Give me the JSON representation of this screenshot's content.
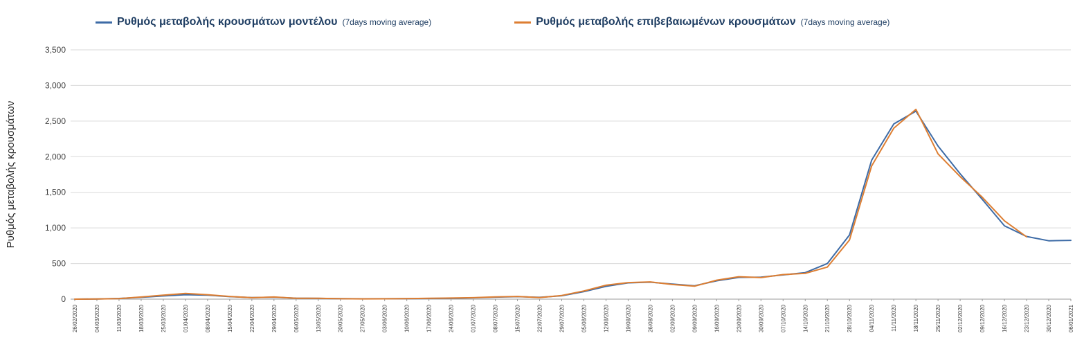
{
  "legend": {
    "items": [
      {
        "label": "Ρυθμός μεταβολής κρουσμάτων μοντέλου",
        "suffix": "(7days moving average)",
        "color": "#3d6ba6"
      },
      {
        "label": "Ρυθμός μεταβολής επιβεβαιωμένων κρουσμάτων",
        "suffix": "(7days moving average)",
        "color": "#dd7e32"
      }
    ]
  },
  "chart_data": {
    "type": "line",
    "title": "",
    "xlabel": "",
    "ylabel": "Ρυθμός μεταβολής κρουσμάτων",
    "ylim": [
      0,
      3500
    ],
    "ytick_step": 500,
    "ytick_labels": [
      "0",
      "500",
      "1,000",
      "1,500",
      "2,000",
      "2,500",
      "3,000",
      "3,500"
    ],
    "grid": "horizontal",
    "legend_position": "top",
    "categories": [
      "26/02/2020",
      "04/03/2020",
      "11/03/2020",
      "18/03/2020",
      "25/03/2020",
      "01/04/2020",
      "08/04/2020",
      "15/04/2020",
      "22/04/2020",
      "29/04/2020",
      "06/05/2020",
      "13/05/2020",
      "20/05/2020",
      "27/05/2020",
      "03/06/2020",
      "10/06/2020",
      "17/06/2020",
      "24/06/2020",
      "01/07/2020",
      "08/07/2020",
      "15/07/2020",
      "22/07/2020",
      "29/07/2020",
      "05/08/2020",
      "12/08/2020",
      "19/08/2020",
      "26/08/2020",
      "02/09/2020",
      "09/09/2020",
      "16/09/2020",
      "23/09/2020",
      "30/09/2020",
      "07/10/2020",
      "14/10/2020",
      "21/10/2020",
      "28/10/2020",
      "04/11/2020",
      "11/11/2020",
      "18/11/2020",
      "25/11/2020",
      "02/12/2020",
      "09/12/2020",
      "16/12/2020",
      "23/12/2020",
      "30/12/2020",
      "06/01/2021"
    ],
    "series": [
      {
        "name": "Ρυθμός μεταβολής κρουσμάτων μοντέλου",
        "color": "#3d6ba6",
        "values": [
          0,
          3,
          10,
          25,
          45,
          62,
          55,
          35,
          22,
          26,
          14,
          11,
          7,
          5,
          6,
          8,
          10,
          13,
          18,
          28,
          35,
          25,
          48,
          105,
          180,
          228,
          238,
          212,
          188,
          258,
          305,
          308,
          340,
          372,
          500,
          900,
          1950,
          2460,
          2640,
          2150,
          1760,
          1400,
          1030,
          880,
          820,
          825
        ]
      },
      {
        "name": "Ρυθμός μεταβολής επιβεβαιωμένων κρουσμάτων",
        "color": "#dd7e32",
        "values": [
          0,
          2,
          8,
          30,
          55,
          80,
          62,
          38,
          20,
          30,
          12,
          12,
          6,
          4,
          5,
          8,
          12,
          16,
          20,
          32,
          38,
          22,
          52,
          115,
          195,
          232,
          242,
          205,
          182,
          266,
          315,
          302,
          345,
          362,
          450,
          830,
          1870,
          2400,
          2665,
          2040,
          1720,
          1430,
          1100,
          875,
          null,
          null
        ]
      }
    ]
  }
}
